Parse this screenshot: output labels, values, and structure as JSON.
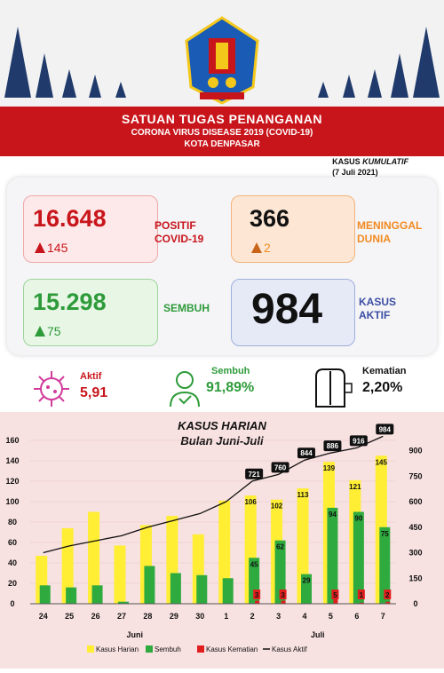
{
  "header": {
    "title": "SATUAN TUGAS PENANGANAN",
    "subtitle": "CORONA VIRUS DISEASE 2019 (COVID-19)",
    "city": "KOTA DENPASAR",
    "kumulatif_prefix": "KASUS",
    "kumulatif_italic": "KUMULATIF",
    "date": "(7 Juli 2021)"
  },
  "colors": {
    "banner": "#c8151b",
    "positif": "#c8151b",
    "meninggal": "#f28a21",
    "sembuh": "#2e9b3a",
    "aktif": "#3c4fa3",
    "bar_harian": "#ffee33",
    "bar_sembuh": "#2eaa3e",
    "bar_kematian": "#e01e1e"
  },
  "stats": {
    "positif": {
      "value": "16.648",
      "delta": "145",
      "label_line1": "POSITIF",
      "label_line2": "COVID-19"
    },
    "meninggal": {
      "value": "366",
      "delta": "2",
      "label_line1": "MENINGGAL",
      "label_line2": "DUNIA"
    },
    "sembuh": {
      "value": "15.298",
      "delta": "75",
      "label_line1": "SEMBUH"
    },
    "aktif": {
      "value": "984",
      "label_line1": "KASUS",
      "label_line2": "AKTIF"
    }
  },
  "percentages": {
    "aktif": {
      "label": "Aktif",
      "value": "5,91",
      "icon": "virus-icon"
    },
    "sembuh": {
      "label": "Sembuh",
      "value": "91,89%",
      "icon": "recovered-person-icon"
    },
    "kematian": {
      "label": "Kematian",
      "value": "2,20%",
      "icon": "shroud-icon"
    }
  },
  "chart_data": {
    "type": "bar",
    "title": "KASUS HARIAN",
    "subtitle": "Bulan Juni-Juli",
    "categories": [
      "24",
      "25",
      "26",
      "27",
      "28",
      "29",
      "30",
      "1",
      "2",
      "3",
      "4",
      "5",
      "6",
      "7"
    ],
    "month_labels": [
      "Juni",
      "Juli"
    ],
    "ylim": [
      0,
      160
    ],
    "yticks": [
      0,
      20,
      40,
      60,
      80,
      100,
      120,
      140,
      160
    ],
    "y2lim": [
      0,
      960
    ],
    "y2ticks": [
      0,
      150,
      300,
      450,
      600,
      750,
      900
    ],
    "series": [
      {
        "name": "Kasus Harian",
        "axis": "left",
        "values": [
          47,
          74,
          90,
          57,
          77,
          86,
          68,
          101,
          106,
          102,
          113,
          139,
          121,
          145
        ],
        "labels": [
          "",
          "",
          "",
          "",
          "",
          "",
          "",
          "",
          "106",
          "102",
          "113",
          "139",
          "121",
          "145"
        ]
      },
      {
        "name": "Sembuh",
        "axis": "left",
        "values": [
          18,
          16,
          18,
          2,
          37,
          30,
          28,
          25,
          45,
          62,
          29,
          94,
          90,
          75
        ],
        "labels": [
          "",
          "",
          "",
          "",
          "",
          "",
          "",
          "",
          "45",
          "62",
          "29",
          "94",
          "90",
          "75"
        ]
      },
      {
        "name": "Kasus Kematian",
        "axis": "left",
        "values": [
          0,
          0,
          0,
          0,
          0,
          0,
          0,
          0,
          3,
          3,
          0,
          5,
          1,
          2
        ],
        "labels": [
          "",
          "",
          "",
          "",
          "",
          "",
          "",
          "",
          "3",
          "3",
          "",
          "5",
          "1",
          "2"
        ]
      },
      {
        "name": "Kasus Aktif",
        "axis": "right",
        "values": [
          300,
          340,
          370,
          400,
          450,
          490,
          530,
          600,
          721,
          760,
          844,
          886,
          916,
          984
        ],
        "labels": [
          "",
          "",
          "",
          "",
          "",
          "",
          "",
          "",
          "721",
          "760",
          "844",
          "886",
          "916",
          "984"
        ]
      }
    ],
    "legend_position": "bottom"
  }
}
